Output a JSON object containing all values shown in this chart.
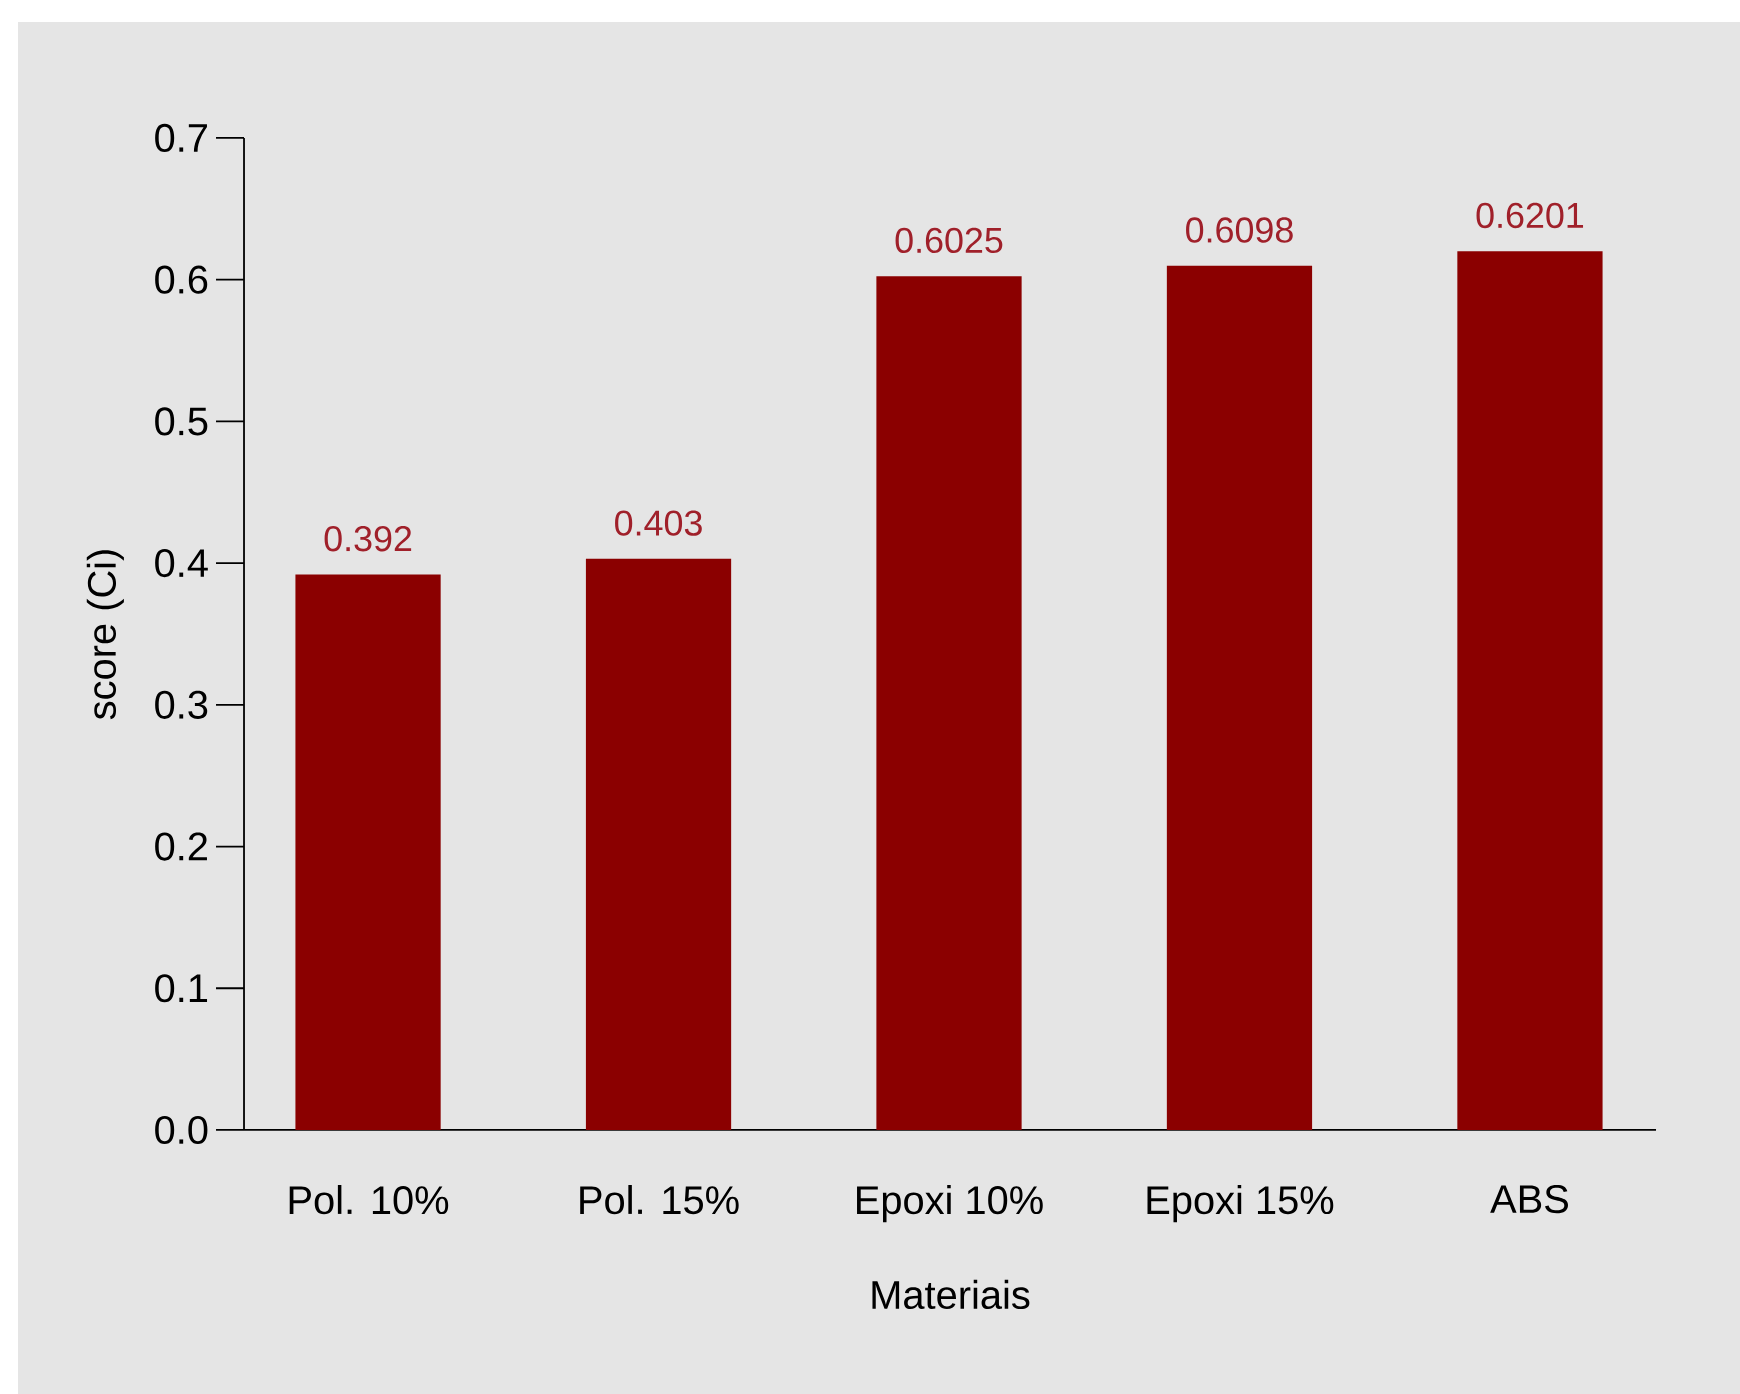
{
  "chart_data": {
    "type": "bar",
    "xlabel": "Materiais",
    "ylabel": "score (Ci)",
    "categories": [
      "Pol. 10%",
      "Pol. 15%",
      "Epoxi 10%",
      "Epoxi 15%",
      "ABS"
    ],
    "values": [
      0.392,
      0.403,
      0.6025,
      0.6098,
      0.6201
    ],
    "color": "#8b0000",
    "ylim": [
      0,
      0.7
    ],
    "yticks": [
      {
        "value": 0,
        "label": "0.0"
      },
      0.1,
      0.2,
      0.3,
      0.4,
      0.5,
      0.6,
      0.7
    ],
    "data_labels": true
  }
}
